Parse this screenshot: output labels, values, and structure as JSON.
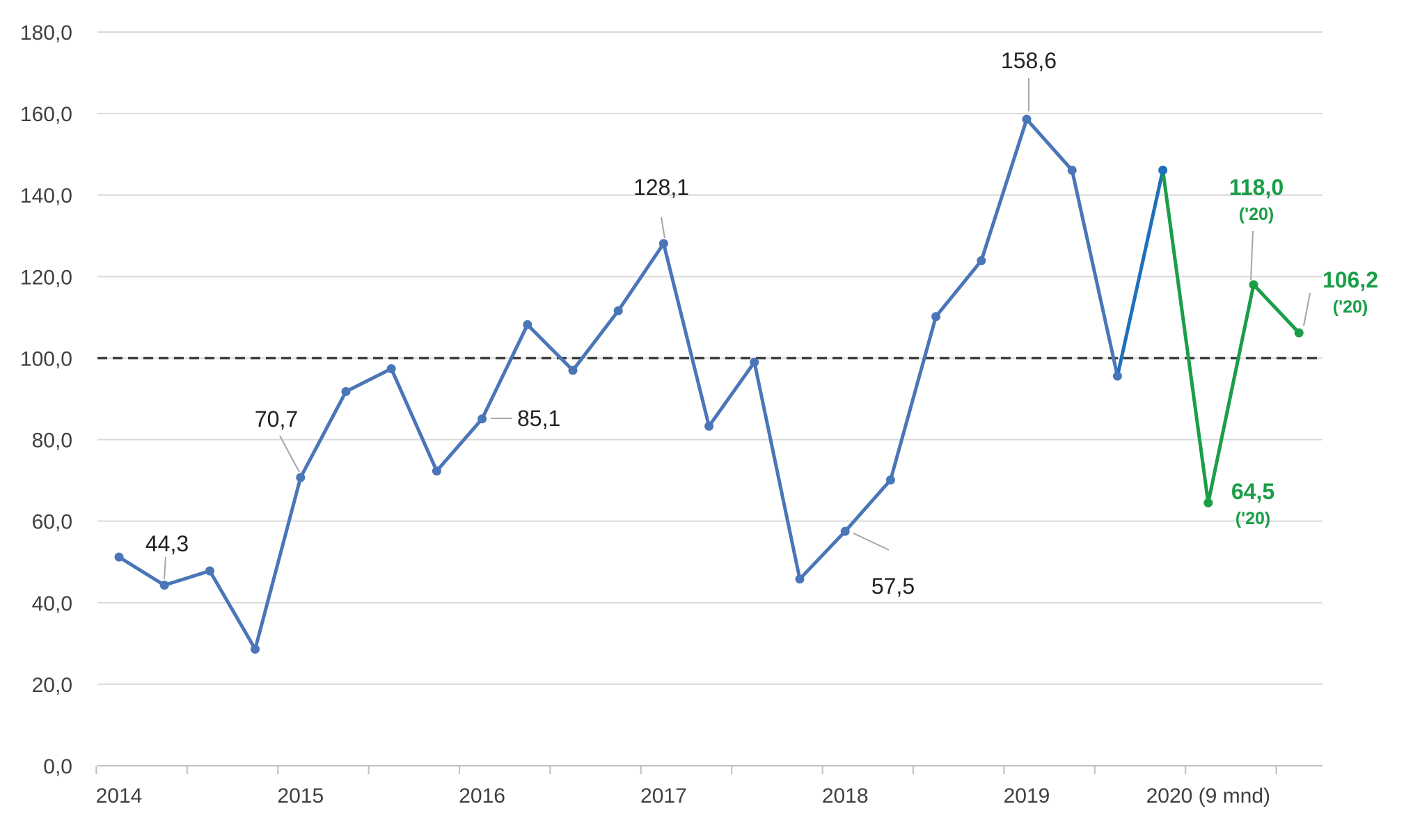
{
  "chart_data": {
    "type": "line",
    "title": "",
    "xlabel": "",
    "ylabel": "",
    "ylim": [
      0,
      180
    ],
    "y_ticks": [
      "0,0",
      "20,0",
      "40,0",
      "60,0",
      "80,0",
      "100,0",
      "120,0",
      "140,0",
      "160,0",
      "180,0"
    ],
    "y_tick_values": [
      0,
      20,
      40,
      60,
      80,
      100,
      120,
      140,
      160,
      180
    ],
    "x_tick_labels": [
      "2014",
      "2015",
      "2016",
      "2017",
      "2018",
      "2019",
      "2020 (9 mnd)"
    ],
    "x_tick_quarter_index": [
      0,
      4,
      8,
      12,
      16,
      20,
      24
    ],
    "grid": true,
    "reference_line": {
      "value": 100,
      "style": "dashed"
    },
    "series": [
      {
        "color": "#4a76b8",
        "points": [
          {
            "q": 0,
            "y": 51.2
          },
          {
            "q": 1,
            "y": 44.3
          },
          {
            "q": 2,
            "y": 47.8
          },
          {
            "q": 3,
            "y": 28.6
          },
          {
            "q": 4,
            "y": 70.7
          },
          {
            "q": 5,
            "y": 91.8
          },
          {
            "q": 6,
            "y": 97.4
          },
          {
            "q": 7,
            "y": 72.3
          },
          {
            "q": 8,
            "y": 85.1
          },
          {
            "q": 9,
            "y": 108.2
          },
          {
            "q": 10,
            "y": 97.0
          },
          {
            "q": 11,
            "y": 111.6
          },
          {
            "q": 12,
            "y": 128.1
          },
          {
            "q": 13,
            "y": 83.3
          },
          {
            "q": 14,
            "y": 99.0
          },
          {
            "q": 15,
            "y": 45.8
          },
          {
            "q": 16,
            "y": 57.5
          },
          {
            "q": 17,
            "y": 70.1
          },
          {
            "q": 18,
            "y": 110.2
          },
          {
            "q": 19,
            "y": 123.9
          },
          {
            "q": 20,
            "y": 158.6
          },
          {
            "q": 21,
            "y": 146.1
          },
          {
            "q": 22,
            "y": 95.6
          }
        ]
      },
      {
        "color": "#1f6fbd",
        "points": [
          {
            "q": 22,
            "y": 95.6
          },
          {
            "q": 23,
            "y": 146.1
          }
        ]
      },
      {
        "color": "#1a9e47",
        "points": [
          {
            "q": 23,
            "y": 146.1
          },
          {
            "q": 24,
            "y": 64.5
          },
          {
            "q": 25,
            "y": 118.0
          },
          {
            "q": 26,
            "y": 106.2
          }
        ]
      }
    ],
    "annotations": [
      {
        "text": "44,3",
        "q": 1,
        "y": 44.3,
        "color": "#222222"
      },
      {
        "text": "70,7",
        "q": 4,
        "y": 70.7,
        "color": "#222222"
      },
      {
        "text": "85,1",
        "q": 8,
        "y": 85.1,
        "color": "#222222"
      },
      {
        "text": "128,1",
        "q": 12,
        "y": 128.1,
        "color": "#222222"
      },
      {
        "text": "57,5",
        "q": 16,
        "y": 57.5,
        "color": "#222222"
      },
      {
        "text": "158,6",
        "q": 20,
        "y": 158.6,
        "color": "#222222"
      },
      {
        "text": "118,0",
        "sub": "('20)",
        "q": 25,
        "y": 118.0,
        "color": "#1a9e47"
      },
      {
        "text": "64,5",
        "sub": "('20)",
        "q": 24,
        "y": 64.5,
        "color": "#1a9e47"
      },
      {
        "text": "106,2",
        "sub": "('20)",
        "q": 26,
        "y": 106.2,
        "color": "#1a9e47"
      }
    ]
  }
}
